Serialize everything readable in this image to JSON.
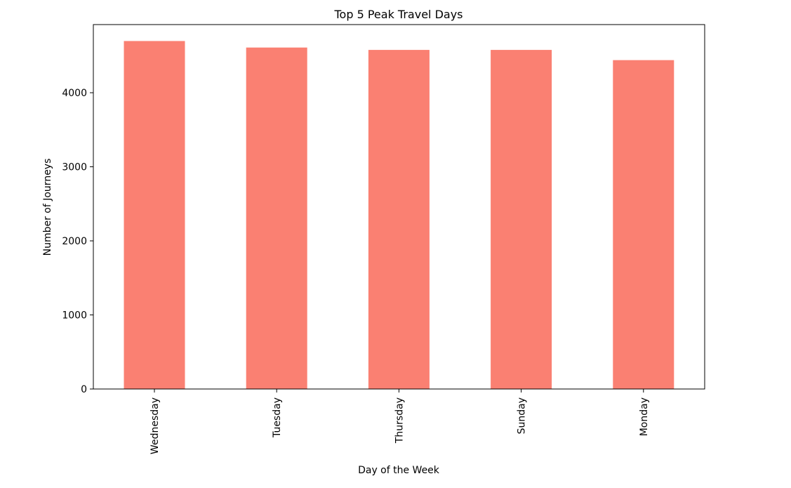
{
  "chart_data": {
    "type": "bar",
    "title": "Top 5 Peak Travel Days",
    "xlabel": "Day of the Week",
    "ylabel": "Number of Journeys",
    "categories": [
      "Wednesday",
      "Tuesday",
      "Thursday",
      "Sunday",
      "Monday"
    ],
    "values": [
      4698,
      4610,
      4578,
      4578,
      4440
    ],
    "ylim": [
      0,
      4920
    ],
    "yticks": [
      0,
      1000,
      2000,
      3000,
      4000
    ],
    "grid": false,
    "bar_color": "#fa8072",
    "axis_color": "#000000"
  }
}
